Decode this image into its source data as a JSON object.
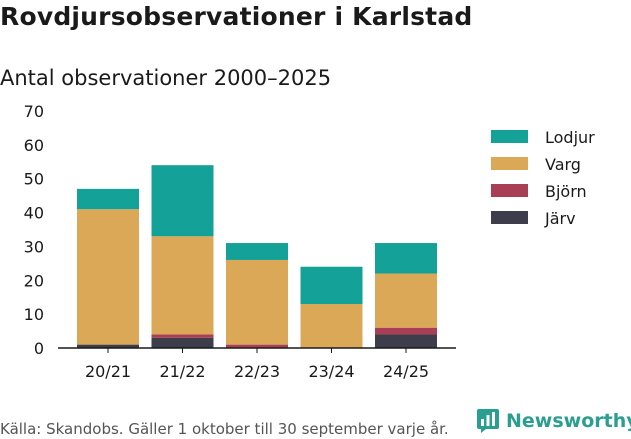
{
  "header": {
    "title": "Rovdjursobservationer i Karlstad",
    "subtitle": "Antal observationer 2000–2025"
  },
  "footer": {
    "source": "Källa: Skandobs. Gäller 1 oktober till 30 september varje år.",
    "brand": "Newsworthy"
  },
  "colors": {
    "Lodjur": "#14a198",
    "Varg": "#dba858",
    "Björn": "#a93f55",
    "Järv": "#3d3d4b"
  },
  "chart_data": {
    "type": "bar",
    "stacked": true,
    "title": "Antal observationer 2000–2025",
    "xlabel": "",
    "ylabel": "",
    "ylim": [
      0,
      70
    ],
    "yticks": [
      0,
      10,
      20,
      30,
      40,
      50,
      60,
      70
    ],
    "categories": [
      "20/21",
      "21/22",
      "22/23",
      "23/24",
      "24/25"
    ],
    "legend_position": "right",
    "series": [
      {
        "name": "Järv",
        "values": [
          1,
          3,
          0,
          0,
          4
        ]
      },
      {
        "name": "Björn",
        "values": [
          0,
          1,
          1,
          0,
          2
        ]
      },
      {
        "name": "Varg",
        "values": [
          40,
          29,
          25,
          13,
          16
        ]
      },
      {
        "name": "Lodjur",
        "values": [
          6,
          21,
          5,
          11,
          9
        ]
      }
    ],
    "legend_order": [
      "Lodjur",
      "Varg",
      "Björn",
      "Järv"
    ]
  }
}
